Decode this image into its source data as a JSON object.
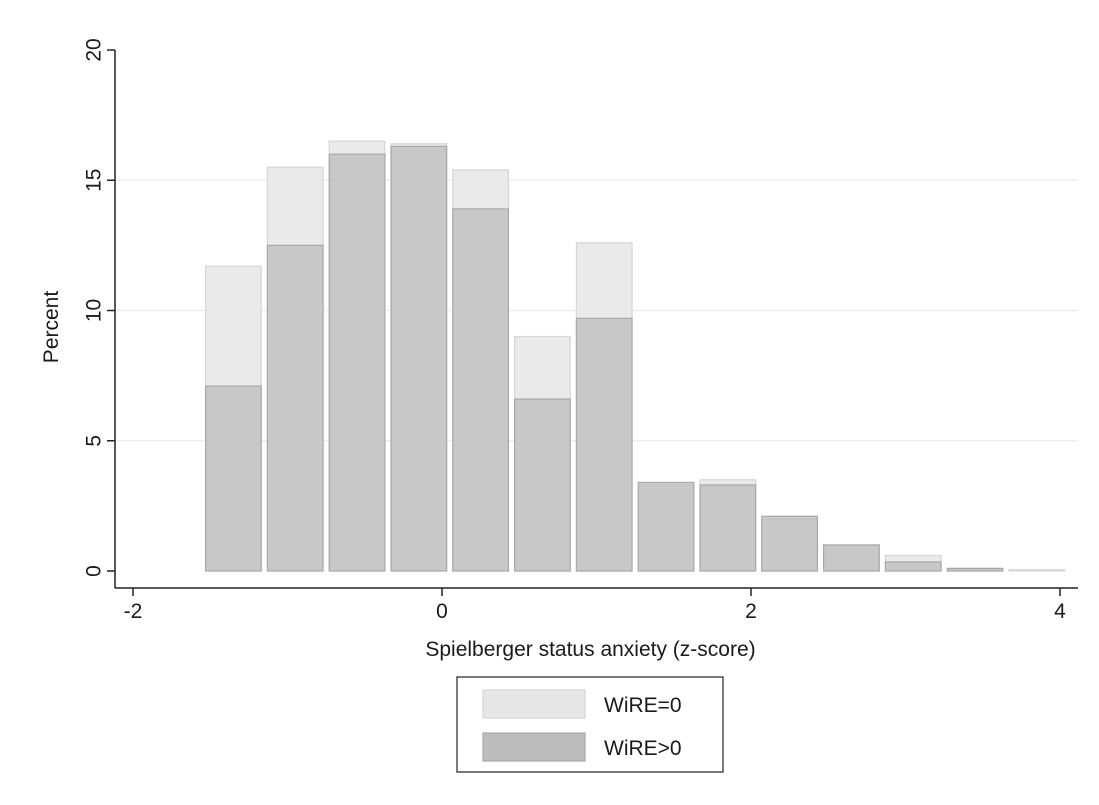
{
  "chart_data": {
    "type": "bar",
    "subtype": "overlaid-histogram",
    "title": "",
    "xlabel": "Spielberger status anxiety (z-score)",
    "ylabel": "Percent",
    "xlim": [
      -2,
      4
    ],
    "ylim": [
      0,
      20
    ],
    "x_ticks": [
      -2,
      0,
      2,
      4
    ],
    "y_ticks": [
      0,
      5,
      10,
      15,
      20
    ],
    "grid": true,
    "legend_position": "bottom",
    "bin_width": 0.4,
    "bins_start": [
      -1.55,
      -1.15,
      -0.75,
      -0.35,
      0.05,
      0.45,
      0.85,
      1.25,
      1.65,
      2.05,
      2.45,
      2.85,
      3.25,
      3.65
    ],
    "series": [
      {
        "name": "WiRE=0",
        "color": "#e6e6e6",
        "values": [
          11.7,
          15.5,
          16.5,
          16.4,
          15.4,
          9.0,
          12.6,
          3.3,
          3.5,
          2.0,
          1.0,
          0.6,
          0.1,
          0.05
        ]
      },
      {
        "name": "WiRE>0",
        "color": "#bcbcbc",
        "values": [
          7.1,
          12.5,
          16.0,
          16.3,
          13.9,
          6.6,
          9.7,
          3.4,
          3.3,
          2.1,
          1.0,
          0.35,
          0.1,
          0.0
        ]
      }
    ]
  }
}
